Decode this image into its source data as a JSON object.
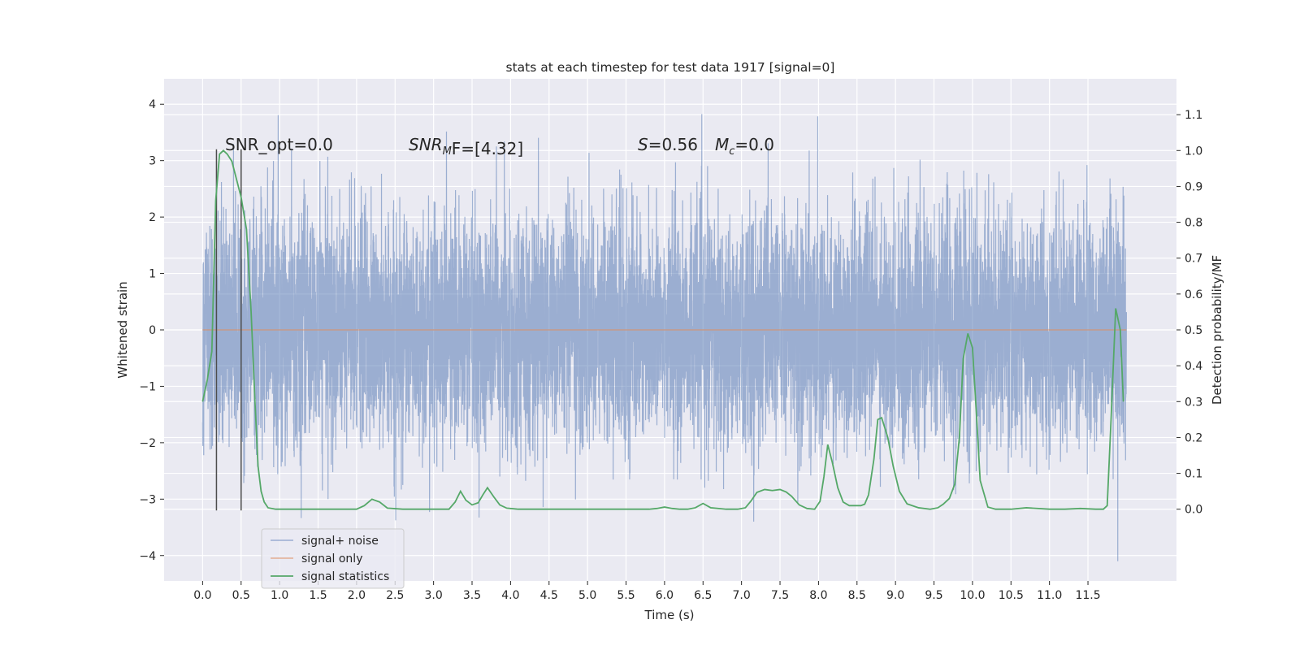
{
  "chart_data": {
    "type": "line",
    "title": "stats at each timestep for test data 1917 [signal=0]",
    "xlabel": "Time (s)",
    "ylabel_left": "Whitened strain",
    "ylabel_right": "Detection probability/MF",
    "xlim": [
      -0.5,
      12.65
    ],
    "ylim_left": [
      -4.45,
      4.45
    ],
    "ylim_right": [
      -0.2,
      1.2
    ],
    "x_ticks": [
      0.0,
      0.5,
      1.0,
      1.5,
      2.0,
      2.5,
      3.0,
      3.5,
      4.0,
      4.5,
      5.0,
      5.5,
      6.0,
      6.5,
      7.0,
      7.5,
      8.0,
      8.5,
      9.0,
      9.5,
      10.0,
      10.5,
      11.0,
      11.5
    ],
    "x_tick_labels": [
      "0.0",
      "0.5",
      "1.0",
      "1.5",
      "2.0",
      "2.5",
      "3.0",
      "3.5",
      "4.0",
      "4.5",
      "5.0",
      "5.5",
      "6.0",
      "6.5",
      "7.0",
      "7.5",
      "8.0",
      "8.5",
      "9.0",
      "9.5",
      "10.0",
      "10.5",
      "11.0",
      "11.5"
    ],
    "y_left_ticks": [
      4,
      3,
      2,
      1,
      0,
      -1,
      -2,
      -3,
      -4
    ],
    "y_left_tick_labels": [
      "4",
      "3",
      "2",
      "1",
      "0",
      "−1",
      "−2",
      "−3",
      "−4"
    ],
    "y_right_ticks": [
      1.1,
      1.0,
      0.9,
      0.8,
      0.7,
      0.6,
      0.5,
      0.4,
      0.3,
      0.2,
      0.1,
      0.0
    ],
    "y_right_tick_labels": [
      "1.1",
      "1.0",
      "0.9",
      "0.8",
      "0.7",
      "0.6",
      "0.5",
      "0.4",
      "0.3",
      "0.2",
      "0.1",
      "0.0"
    ],
    "grid": true,
    "legend_position": "lower-left",
    "series": [
      {
        "name": "signal+ noise",
        "axis": "left",
        "color": "#4c72b0",
        "kind": "dense-noise",
        "x_range": [
          0.0,
          12.0
        ],
        "samples": 8192,
        "y_min": -4.1,
        "y_max": 4.1,
        "std": 1.0
      },
      {
        "name": "signal only",
        "axis": "left",
        "color": "#dd8452",
        "x": [
          0.0,
          12.0
        ],
        "y": [
          0.0,
          0.0
        ]
      },
      {
        "name": "signal statistics",
        "axis": "right",
        "color": "#55a868",
        "x": [
          0.0,
          0.06,
          0.12,
          0.17,
          0.22,
          0.27,
          0.32,
          0.38,
          0.44,
          0.5,
          0.57,
          0.63,
          0.68,
          0.72,
          0.76,
          0.8,
          0.85,
          0.95,
          1.2,
          1.5,
          1.8,
          2.0,
          2.1,
          2.2,
          2.3,
          2.4,
          2.6,
          3.0,
          3.2,
          3.28,
          3.35,
          3.42,
          3.5,
          3.58,
          3.64,
          3.7,
          3.78,
          3.86,
          3.95,
          4.1,
          4.5,
          5.0,
          5.5,
          5.8,
          5.9,
          6.0,
          6.1,
          6.2,
          6.3,
          6.4,
          6.5,
          6.6,
          6.8,
          6.95,
          7.05,
          7.12,
          7.2,
          7.3,
          7.4,
          7.5,
          7.58,
          7.65,
          7.75,
          7.85,
          7.95,
          8.02,
          8.07,
          8.12,
          8.18,
          8.25,
          8.32,
          8.4,
          8.5,
          8.55,
          8.6,
          8.65,
          8.72,
          8.77,
          8.82,
          8.9,
          8.97,
          9.05,
          9.15,
          9.3,
          9.45,
          9.55,
          9.62,
          9.7,
          9.77,
          9.83,
          9.88,
          9.94,
          10.0,
          10.05,
          10.1,
          10.2,
          10.3,
          10.5,
          10.7,
          11.0,
          11.2,
          11.4,
          11.6,
          11.7,
          11.75,
          11.8,
          11.86,
          11.92,
          11.96
        ],
        "y": [
          0.3,
          0.36,
          0.44,
          0.86,
          0.99,
          1.0,
          0.99,
          0.97,
          0.92,
          0.87,
          0.78,
          0.55,
          0.3,
          0.12,
          0.05,
          0.02,
          0.004,
          0.0,
          0.0,
          0.0,
          0.0,
          0.0,
          0.01,
          0.028,
          0.02,
          0.003,
          0.0,
          0.0,
          0.0,
          0.02,
          0.05,
          0.025,
          0.012,
          0.018,
          0.04,
          0.06,
          0.035,
          0.012,
          0.003,
          0.0,
          0.0,
          0.0,
          0.0,
          0.0,
          0.002,
          0.006,
          0.002,
          0.0,
          0.0,
          0.004,
          0.016,
          0.004,
          0.0,
          0.0,
          0.004,
          0.022,
          0.047,
          0.055,
          0.052,
          0.055,
          0.048,
          0.036,
          0.012,
          0.002,
          0.0,
          0.022,
          0.09,
          0.18,
          0.13,
          0.06,
          0.02,
          0.01,
          0.01,
          0.01,
          0.014,
          0.04,
          0.14,
          0.25,
          0.255,
          0.2,
          0.12,
          0.05,
          0.015,
          0.004,
          0.0,
          0.004,
          0.014,
          0.03,
          0.07,
          0.2,
          0.42,
          0.49,
          0.45,
          0.27,
          0.08,
          0.006,
          0.0,
          0.0,
          0.004,
          0.0,
          0.0,
          0.002,
          0.0,
          0.0,
          0.01,
          0.25,
          0.56,
          0.5,
          0.3
        ]
      },
      {
        "name": "markers",
        "axis": "left",
        "color": "#4d4d4d",
        "kind": "vlines",
        "x": [
          0.18,
          0.5
        ],
        "y_from": -3.2,
        "y_to": 3.2
      }
    ],
    "annotations": [
      {
        "text": "SNR_opt=0.0",
        "x": 0.2,
        "y": 3.2
      },
      {
        "text_main": "SNR",
        "text_sub": "M",
        "text_tail": "F=[4.32]",
        "x": 2.6,
        "y": 3.2
      },
      {
        "text_main": "S",
        "text_tail": "=0.56",
        "x": 5.6,
        "y": 3.2
      },
      {
        "text_main": "M",
        "text_sub": "c",
        "text_tail": "=0.0",
        "x": 6.6,
        "y": 3.2
      }
    ]
  }
}
